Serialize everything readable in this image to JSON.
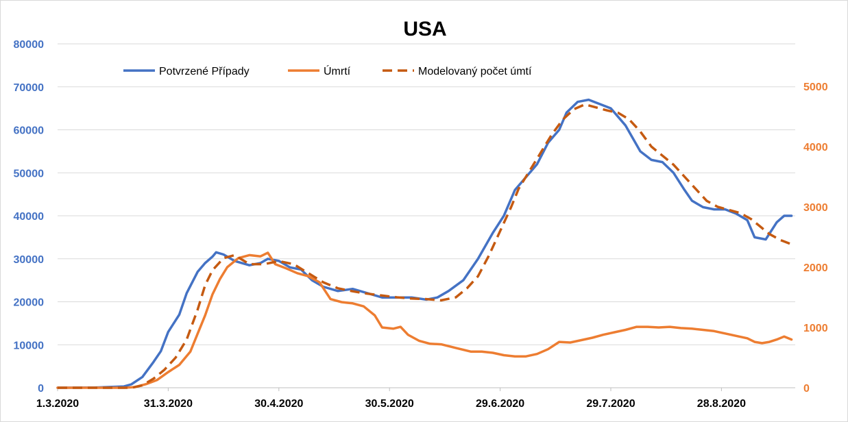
{
  "chart_data": {
    "type": "line",
    "title": "USA",
    "x_labels": [
      "1.3.2020",
      "31.3.2020",
      "30.4.2020",
      "30.5.2020",
      "29.6.2020",
      "29.7.2020",
      "28.8.2020"
    ],
    "x_range_days": [
      0,
      200
    ],
    "y_left": {
      "ticks": [
        0,
        10000,
        20000,
        30000,
        40000,
        50000,
        60000,
        70000,
        80000
      ],
      "lim": [
        0,
        80000
      ],
      "color": "#4472c4"
    },
    "y_right": {
      "ticks": [
        0,
        1000,
        2000,
        3000,
        4000,
        5000
      ],
      "lim": [
        0,
        5700
      ],
      "color": "#ed7d31"
    },
    "grid": true,
    "legend_position": "top",
    "series": [
      {
        "name": "Potvrzené Případy",
        "axis": "left",
        "color": "#4472c4",
        "style": "solid",
        "points": [
          [
            0,
            0
          ],
          [
            10,
            50
          ],
          [
            18,
            300
          ],
          [
            20,
            800
          ],
          [
            23,
            2500
          ],
          [
            26,
            6000
          ],
          [
            28,
            8500
          ],
          [
            30,
            13000
          ],
          [
            33,
            17000
          ],
          [
            35,
            22000
          ],
          [
            38,
            27000
          ],
          [
            40,
            29000
          ],
          [
            42,
            30500
          ],
          [
            43,
            31500
          ],
          [
            45,
            31000
          ],
          [
            48,
            29500
          ],
          [
            52,
            28500
          ],
          [
            55,
            29000
          ],
          [
            57,
            30000
          ],
          [
            60,
            29500
          ],
          [
            63,
            28000
          ],
          [
            66,
            27500
          ],
          [
            69,
            25000
          ],
          [
            72,
            23500
          ],
          [
            76,
            22500
          ],
          [
            80,
            23000
          ],
          [
            84,
            22000
          ],
          [
            88,
            21000
          ],
          [
            92,
            21000
          ],
          [
            96,
            21000
          ],
          [
            100,
            20500
          ],
          [
            103,
            21000
          ],
          [
            106,
            22500
          ],
          [
            110,
            25000
          ],
          [
            114,
            30000
          ],
          [
            118,
            36000
          ],
          [
            121,
            40000
          ],
          [
            124,
            46000
          ],
          [
            127,
            49000
          ],
          [
            130,
            52000
          ],
          [
            133,
            57000
          ],
          [
            136,
            60000
          ],
          [
            138,
            64000
          ],
          [
            141,
            66500
          ],
          [
            144,
            67000
          ],
          [
            147,
            66000
          ],
          [
            150,
            65000
          ],
          [
            152,
            63000
          ],
          [
            154,
            61000
          ],
          [
            156,
            58000
          ],
          [
            158,
            55000
          ],
          [
            161,
            53000
          ],
          [
            164,
            52500
          ],
          [
            167,
            50000
          ],
          [
            170,
            46000
          ],
          [
            172,
            43500
          ],
          [
            175,
            42000
          ],
          [
            178,
            41500
          ],
          [
            181,
            41500
          ],
          [
            184,
            40500
          ],
          [
            187,
            39000
          ],
          [
            189,
            35000
          ],
          [
            192,
            34500
          ],
          [
            195,
            38500
          ],
          [
            197,
            40000
          ],
          [
            199,
            40000
          ]
        ]
      },
      {
        "name": "Úmrtí",
        "axis": "right",
        "color": "#ed7d31",
        "style": "solid",
        "points": [
          [
            0,
            0
          ],
          [
            18,
            0
          ],
          [
            21,
            10
          ],
          [
            24,
            60
          ],
          [
            27,
            130
          ],
          [
            30,
            260
          ],
          [
            33,
            380
          ],
          [
            36,
            600
          ],
          [
            38,
            900
          ],
          [
            40,
            1200
          ],
          [
            42,
            1550
          ],
          [
            44,
            1800
          ],
          [
            46,
            2000
          ],
          [
            49,
            2150
          ],
          [
            52,
            2200
          ],
          [
            55,
            2180
          ],
          [
            57,
            2240
          ],
          [
            59,
            2050
          ],
          [
            62,
            1980
          ],
          [
            65,
            1900
          ],
          [
            68,
            1850
          ],
          [
            71,
            1750
          ],
          [
            74,
            1470
          ],
          [
            77,
            1420
          ],
          [
            80,
            1400
          ],
          [
            83,
            1350
          ],
          [
            86,
            1200
          ],
          [
            88,
            1000
          ],
          [
            91,
            980
          ],
          [
            93,
            1010
          ],
          [
            95,
            880
          ],
          [
            98,
            780
          ],
          [
            101,
            730
          ],
          [
            104,
            720
          ],
          [
            108,
            660
          ],
          [
            112,
            600
          ],
          [
            115,
            600
          ],
          [
            118,
            580
          ],
          [
            121,
            540
          ],
          [
            124,
            520
          ],
          [
            127,
            520
          ],
          [
            130,
            560
          ],
          [
            133,
            640
          ],
          [
            136,
            760
          ],
          [
            139,
            750
          ],
          [
            142,
            790
          ],
          [
            145,
            830
          ],
          [
            148,
            880
          ],
          [
            151,
            920
          ],
          [
            154,
            960
          ],
          [
            157,
            1010
          ],
          [
            160,
            1010
          ],
          [
            163,
            1000
          ],
          [
            166,
            1010
          ],
          [
            169,
            990
          ],
          [
            172,
            980
          ],
          [
            175,
            960
          ],
          [
            178,
            940
          ],
          [
            181,
            900
          ],
          [
            184,
            860
          ],
          [
            187,
            820
          ],
          [
            189,
            760
          ],
          [
            191,
            740
          ],
          [
            193,
            760
          ],
          [
            195,
            800
          ],
          [
            197,
            850
          ],
          [
            199,
            800
          ]
        ]
      },
      {
        "name": "Modelovaný počet úmtí",
        "axis": "right",
        "color": "#c55a11",
        "style": "dashed",
        "points": [
          [
            0,
            0
          ],
          [
            20,
            0
          ],
          [
            23,
            40
          ],
          [
            26,
            150
          ],
          [
            29,
            300
          ],
          [
            32,
            500
          ],
          [
            35,
            800
          ],
          [
            38,
            1300
          ],
          [
            40,
            1700
          ],
          [
            42,
            1950
          ],
          [
            45,
            2150
          ],
          [
            48,
            2200
          ],
          [
            52,
            2050
          ],
          [
            56,
            2050
          ],
          [
            60,
            2100
          ],
          [
            64,
            2050
          ],
          [
            68,
            1900
          ],
          [
            72,
            1750
          ],
          [
            76,
            1650
          ],
          [
            80,
            1600
          ],
          [
            84,
            1560
          ],
          [
            88,
            1530
          ],
          [
            92,
            1500
          ],
          [
            96,
            1480
          ],
          [
            100,
            1470
          ],
          [
            104,
            1450
          ],
          [
            108,
            1500
          ],
          [
            111,
            1650
          ],
          [
            114,
            1850
          ],
          [
            117,
            2200
          ],
          [
            120,
            2600
          ],
          [
            123,
            3000
          ],
          [
            125,
            3300
          ],
          [
            128,
            3600
          ],
          [
            131,
            3900
          ],
          [
            134,
            4200
          ],
          [
            137,
            4450
          ],
          [
            140,
            4620
          ],
          [
            143,
            4700
          ],
          [
            146,
            4650
          ],
          [
            149,
            4600
          ],
          [
            152,
            4560
          ],
          [
            155,
            4450
          ],
          [
            158,
            4250
          ],
          [
            161,
            4000
          ],
          [
            164,
            3850
          ],
          [
            167,
            3700
          ],
          [
            170,
            3500
          ],
          [
            173,
            3300
          ],
          [
            176,
            3100
          ],
          [
            179,
            3000
          ],
          [
            182,
            2950
          ],
          [
            185,
            2900
          ],
          [
            188,
            2800
          ],
          [
            190,
            2700
          ],
          [
            193,
            2550
          ],
          [
            196,
            2450
          ],
          [
            199,
            2380
          ]
        ]
      }
    ]
  }
}
